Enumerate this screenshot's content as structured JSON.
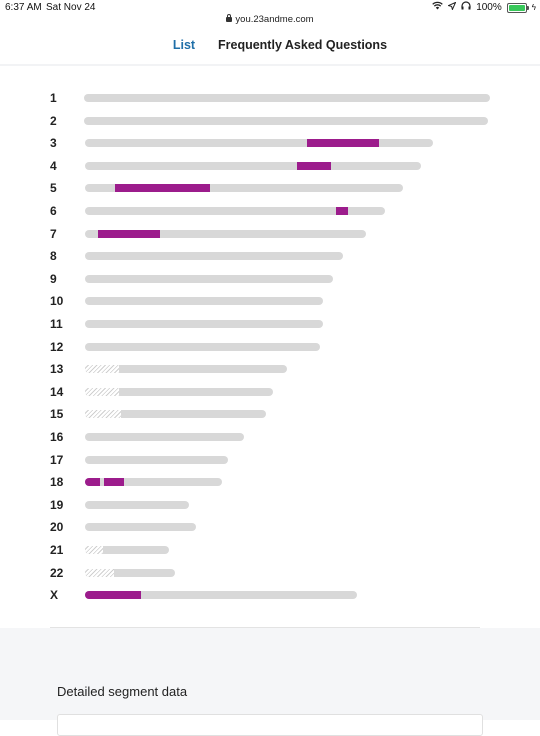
{
  "status_bar": {
    "time": "6:37 AM",
    "date": "Sat Nov 24",
    "url": "you.23andme.com",
    "battery": "100%",
    "icons": [
      "wifi-icon",
      "location-icon",
      "headphones-icon",
      "battery-icon"
    ]
  },
  "tabs": {
    "list_label": "List",
    "faq_label": "Frequently Asked Questions",
    "active": "List"
  },
  "colors": {
    "segment": "#9c1c8c",
    "track": "#d8d8d8",
    "active_tab": "#1f6fa8"
  },
  "chromosomes": [
    {
      "label": "1",
      "length": 1.0,
      "hatch": 0,
      "segments": []
    },
    {
      "label": "2",
      "length": 0.995,
      "hatch": 0,
      "segments": []
    },
    {
      "label": "3",
      "length": 0.857,
      "hatch": 0,
      "segments": [
        [
          0.546,
          0.725
        ]
      ]
    },
    {
      "label": "4",
      "length": 0.828,
      "hatch": 0,
      "segments": [
        [
          0.521,
          0.606
        ]
      ]
    },
    {
      "label": "5",
      "length": 0.784,
      "hatch": 0,
      "segments": [
        [
          0.074,
          0.308
        ]
      ]
    },
    {
      "label": "6",
      "length": 0.738,
      "hatch": 0,
      "segments": [
        [
          0.618,
          0.647
        ]
      ]
    },
    {
      "label": "7",
      "length": 0.691,
      "hatch": 0,
      "segments": [
        [
          0.032,
          0.185
        ]
      ]
    },
    {
      "label": "8",
      "length": 0.635,
      "hatch": 0,
      "segments": []
    },
    {
      "label": "9",
      "length": 0.611,
      "hatch": 0,
      "segments": []
    },
    {
      "label": "10",
      "length": 0.586,
      "hatch": 0,
      "segments": []
    },
    {
      "label": "11",
      "length": 0.586,
      "hatch": 0,
      "segments": []
    },
    {
      "label": "12",
      "length": 0.578,
      "hatch": 0,
      "segments": []
    },
    {
      "label": "13",
      "length": 0.498,
      "hatch": 0.083,
      "segments": []
    },
    {
      "label": "14",
      "length": 0.464,
      "hatch": 0.083,
      "segments": []
    },
    {
      "label": "15",
      "length": 0.445,
      "hatch": 0.088,
      "segments": []
    },
    {
      "label": "16",
      "length": 0.391,
      "hatch": 0,
      "segments": []
    },
    {
      "label": "17",
      "length": 0.351,
      "hatch": 0,
      "segments": []
    },
    {
      "label": "18",
      "length": 0.337,
      "hatch": 0,
      "segments": [
        [
          0.0,
          0.037
        ],
        [
          0.047,
          0.096
        ]
      ]
    },
    {
      "label": "19",
      "length": 0.256,
      "hatch": 0,
      "segments": []
    },
    {
      "label": "20",
      "length": 0.273,
      "hatch": 0,
      "segments": []
    },
    {
      "label": "21",
      "length": 0.207,
      "hatch": 0.044,
      "segments": []
    },
    {
      "label": "22",
      "length": 0.222,
      "hatch": 0.071,
      "segments": []
    },
    {
      "label": "X",
      "length": 0.671,
      "hatch": 0,
      "segments": [
        [
          0.0,
          0.138
        ]
      ]
    }
  ],
  "detail": {
    "title": "Detailed segment data"
  }
}
